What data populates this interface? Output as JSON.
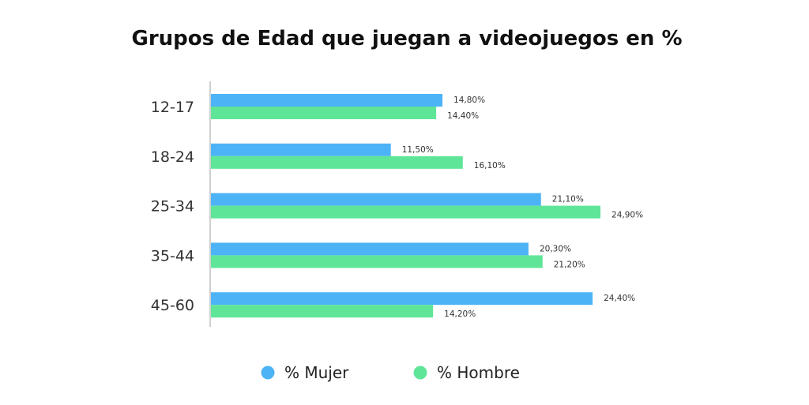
{
  "chart_data": {
    "type": "bar",
    "orientation": "horizontal",
    "title": "Grupos de Edad que juegan a videojuegos en %",
    "categories": [
      "12-17",
      "18-24",
      "25-34",
      "35-44",
      "45-60"
    ],
    "series": [
      {
        "name": "% Mujer",
        "color": "#4DB3F7",
        "values": [
          14.8,
          11.5,
          21.1,
          20.3,
          24.4
        ],
        "labels": [
          "14,80%",
          "11,50%",
          "21,10%",
          "20,30%",
          "24,40%"
        ]
      },
      {
        "name": "% Hombre",
        "color": "#5FE598",
        "values": [
          14.4,
          16.1,
          24.9,
          21.2,
          14.2
        ],
        "labels": [
          "14,40%",
          "16,10%",
          "24,90%",
          "21,20%",
          "14,20%"
        ]
      }
    ],
    "xlim": [
      0,
      30
    ],
    "grid": false,
    "legend_position": "bottom"
  }
}
